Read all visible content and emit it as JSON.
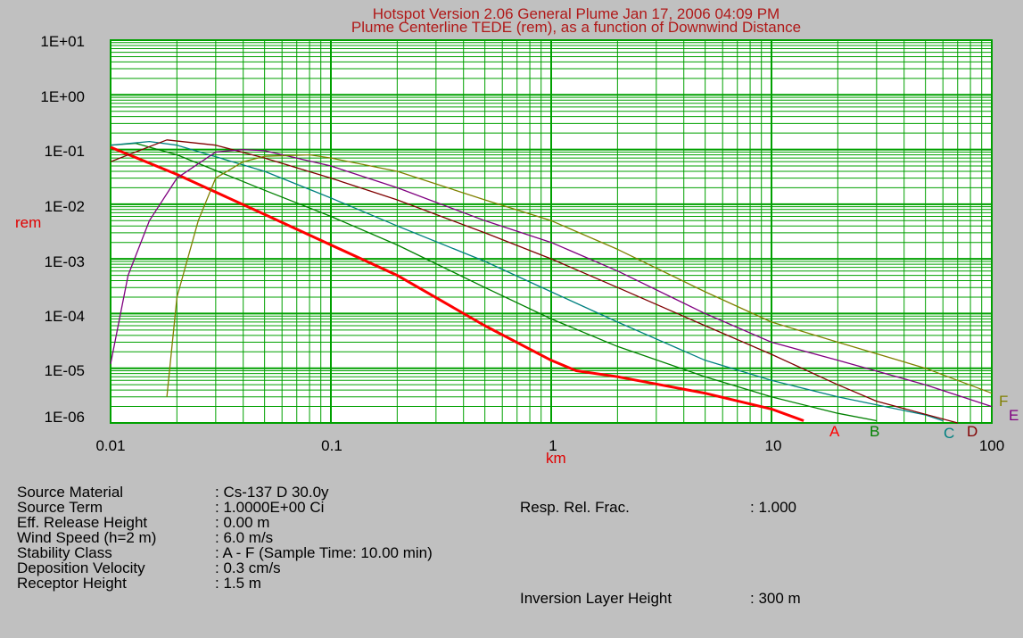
{
  "header": {
    "title_line1": "Hotspot Version 2.06 General Plume  Jan 17, 2006 04:09 PM",
    "title_line2": "Plume Centerline TEDE (rem), as a function of Downwind Distance"
  },
  "chart_data": {
    "type": "line",
    "title": "Plume Centerline TEDE (rem), as a function of Downwind Distance",
    "xlabel": "km",
    "ylabel": "rem",
    "xscale": "log",
    "yscale": "log",
    "xlim": [
      0.01,
      100
    ],
    "ylim": [
      1e-06,
      10
    ],
    "grid": true,
    "x_tick_labels": [
      "0.01",
      "0.1",
      "1",
      "10",
      "100"
    ],
    "y_tick_labels": [
      "1E+01",
      "1E+00",
      "1E-01",
      "1E-02",
      "1E-03",
      "1E-04",
      "1E-05",
      "1E-06"
    ],
    "series": [
      {
        "name": "A",
        "color": "#ff0000",
        "x": [
          0.01,
          0.02,
          0.05,
          0.1,
          0.2,
          0.5,
          1,
          1.3,
          2,
          5,
          10,
          14
        ],
        "y": [
          0.11,
          0.035,
          0.0065,
          0.0018,
          0.0005,
          6e-05,
          1.4e-05,
          9e-06,
          7e-06,
          3.5e-06,
          1.8e-06,
          1.1e-06
        ]
      },
      {
        "name": "B",
        "color": "#008000",
        "x": [
          0.01,
          0.013,
          0.02,
          0.05,
          0.1,
          0.2,
          0.5,
          1,
          2,
          5,
          10,
          20,
          30
        ],
        "y": [
          0.12,
          0.13,
          0.08,
          0.018,
          0.006,
          0.0018,
          0.0003,
          8e-05,
          2.5e-05,
          7e-06,
          3e-06,
          1.5e-06,
          1.1e-06
        ]
      },
      {
        "name": "C",
        "color": "#008080",
        "x": [
          0.01,
          0.015,
          0.02,
          0.05,
          0.1,
          0.2,
          0.5,
          1,
          2,
          5,
          10,
          20,
          50,
          60
        ],
        "y": [
          0.12,
          0.14,
          0.12,
          0.04,
          0.013,
          0.004,
          0.0009,
          0.00025,
          7e-05,
          1.4e-05,
          6e-06,
          3e-06,
          1.4e-06,
          1.1e-06
        ]
      },
      {
        "name": "D",
        "color": "#800000",
        "x": [
          0.01,
          0.018,
          0.03,
          0.05,
          0.1,
          0.2,
          0.5,
          1,
          2,
          5,
          10,
          20,
          30,
          70
        ],
        "y": [
          0.06,
          0.15,
          0.12,
          0.07,
          0.03,
          0.012,
          0.003,
          0.001,
          0.0003,
          6e-05,
          1.8e-05,
          5e-06,
          2.5e-06,
          1e-06
        ]
      },
      {
        "name": "E",
        "color": "#800080",
        "x": [
          0.01,
          0.012,
          0.015,
          0.02,
          0.03,
          0.04,
          0.05,
          0.1,
          0.2,
          0.5,
          1,
          2,
          5,
          10,
          20,
          50,
          100
        ],
        "y": [
          1.2e-05,
          0.0005,
          0.005,
          0.03,
          0.09,
          0.1,
          0.095,
          0.05,
          0.02,
          0.005,
          0.002,
          0.0006,
          0.0001,
          3e-05,
          1.4e-05,
          5e-06,
          2e-06
        ]
      },
      {
        "name": "F",
        "color": "#808000",
        "x": [
          0.018,
          0.02,
          0.025,
          0.03,
          0.04,
          0.05,
          0.08,
          0.1,
          0.2,
          0.5,
          1,
          2,
          5,
          10,
          20,
          50,
          100
        ],
        "y": [
          3e-06,
          0.0002,
          0.005,
          0.03,
          0.06,
          0.075,
          0.08,
          0.07,
          0.04,
          0.012,
          0.005,
          0.0015,
          0.00025,
          7e-05,
          3e-05,
          1e-05,
          3.5e-06
        ]
      }
    ]
  },
  "info": {
    "left_labels": [
      "Source Material",
      "Source Term",
      "Eff. Release Height",
      "Wind Speed (h=2 m)",
      "Stability Class",
      "Deposition Velocity",
      "Receptor Height"
    ],
    "left_values": [
      ":  Cs-137  D    30.0y",
      ": 1.0000E+00 Ci",
      ": 0.00 m",
      ": 6.0 m/s",
      ": A - F (Sample Time: 10.00 min)",
      ": 0.3 cm/s",
      ": 1.5 m"
    ],
    "resp_label": "Resp. Rel. Frac.",
    "resp_value": ": 1.000",
    "inversion_label": "Inversion Layer Height",
    "inversion_value": ":  300 m"
  }
}
